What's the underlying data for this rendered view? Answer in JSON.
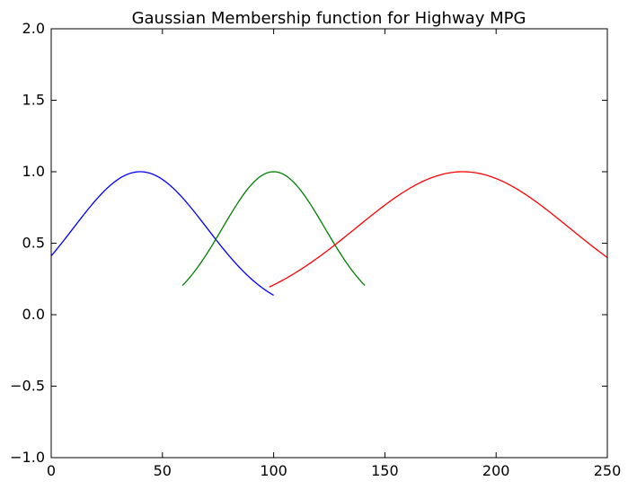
{
  "chart_data": {
    "type": "line",
    "title": "Gaussian Membership function for Highway MPG",
    "xlabel": "",
    "ylabel": "",
    "xlim": [
      0,
      250
    ],
    "ylim": [
      -1.0,
      2.0
    ],
    "grid": false,
    "x_ticks": [
      0,
      50,
      100,
      150,
      200,
      250
    ],
    "x_tick_labels": [
      "0",
      "50",
      "100",
      "150",
      "200",
      "250"
    ],
    "y_ticks": [
      -1.0,
      -0.5,
      0.0,
      0.5,
      1.0,
      1.5,
      2.0
    ],
    "y_tick_labels": [
      "−1.0",
      "−0.5",
      "0.0",
      "0.5",
      "1.0",
      "1.5",
      "2.0"
    ],
    "series": [
      {
        "color": "#0000ff",
        "center": 40,
        "sigma": 30,
        "x": [
          0,
          10,
          20,
          30,
          40,
          50,
          60,
          70,
          80,
          90,
          100
        ],
        "y": [
          0.41,
          0.61,
          0.8,
          0.95,
          1.0,
          0.95,
          0.8,
          0.61,
          0.41,
          0.25,
          0.135
        ]
      },
      {
        "color": "#008000",
        "center": 100,
        "sigma": 23,
        "x": [
          59,
          70,
          80,
          90,
          100,
          110,
          120,
          130,
          141
        ],
        "y": [
          0.205,
          0.43,
          0.68,
          0.91,
          1.0,
          0.91,
          0.68,
          0.43,
          0.205
        ]
      },
      {
        "color": "#ff0000",
        "center": 185,
        "sigma": 48,
        "x": [
          98,
          110,
          130,
          150,
          170,
          185,
          200,
          220,
          240,
          250
        ],
        "y": [
          0.19,
          0.29,
          0.52,
          0.77,
          0.95,
          1.0,
          0.95,
          0.77,
          0.52,
          0.4
        ]
      }
    ]
  }
}
